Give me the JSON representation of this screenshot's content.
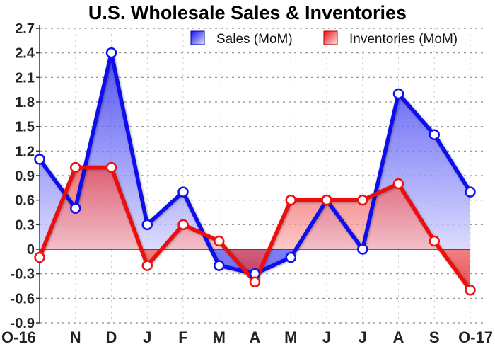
{
  "chart_data": {
    "type": "line",
    "title": "U.S. Wholesale Sales & Inventories",
    "xlabel": "",
    "ylabel": "",
    "categories": [
      "O-16",
      "N",
      "D",
      "J",
      "F",
      "M",
      "A",
      "M",
      "J",
      "J",
      "A",
      "S",
      "O-17"
    ],
    "series": [
      {
        "name": "Sales (MoM)",
        "color": "#1111ee",
        "values": [
          1.1,
          0.5,
          2.4,
          0.3,
          0.7,
          -0.2,
          -0.3,
          -0.1,
          0.6,
          0.0,
          1.9,
          1.4,
          0.7
        ]
      },
      {
        "name": "Inventories (MoM)",
        "color": "#ee1111",
        "values": [
          -0.1,
          1.0,
          1.0,
          -0.2,
          0.3,
          0.1,
          -0.4,
          0.6,
          0.6,
          0.6,
          0.8,
          0.1,
          -0.5
        ]
      }
    ],
    "yticks": [
      2.7,
      2.4,
      2.1,
      1.8,
      1.5,
      1.2,
      0.9,
      0.6,
      0.3,
      0,
      -0.3,
      -0.6,
      -0.9
    ],
    "ytick_labels": [
      "2.7",
      "2.4",
      "2.1",
      "1.8",
      "1.5",
      "1.2",
      "0.9",
      "0.6",
      "0.3",
      "0",
      "-0.3",
      "-0.6",
      "-0.9"
    ],
    "ylim": [
      -0.9,
      2.7
    ],
    "grid": true,
    "legend_position": "top-right"
  }
}
